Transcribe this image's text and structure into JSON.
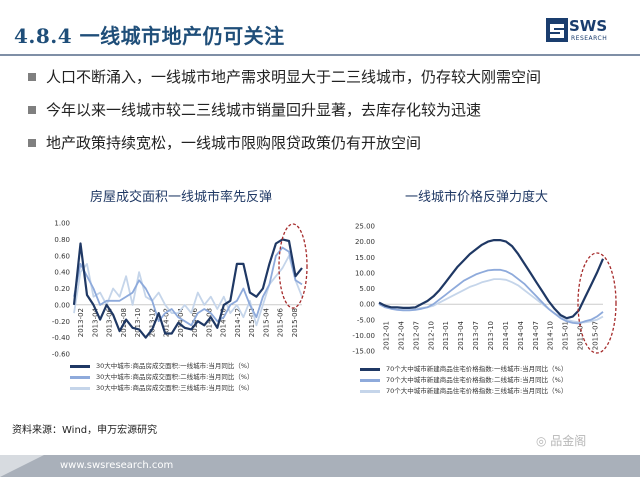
{
  "slide": {
    "title": "4.8.4 一线城市地产仍可关注",
    "logo_text": "SWS",
    "logo_sub": "RESEARCH",
    "bullets": [
      "人口不断涌入，一线城市地产需求明显大于二三线城市，仍存较大刚需空间",
      "今年以来一线城市较二三线城市销量回升显著，去库存化较为迅速",
      "地产政策持续宽松，一线城市限购限贷政策仍有开放空间"
    ],
    "source": "资料来源：Wind，申万宏源研究",
    "watermark": "品金阁",
    "footer_url": "www.swsresearch.com"
  },
  "colors": {
    "brand": "#1f4e79",
    "series_tier1": "#1f3864",
    "series_tier2": "#8eaadb",
    "series_tier3": "#c5d5ea",
    "highlight_ellipse": "#a52a2a"
  },
  "chart_data": [
    {
      "type": "line",
      "title": "房屋成交面积一线城市率先反弹",
      "ylim": [
        -0.6,
        1.0
      ],
      "yticks": [
        "1.00",
        "0.80",
        "0.60",
        "0.40",
        "0.20",
        "0.00",
        "-0.20",
        "-0.40",
        "-0.60"
      ],
      "x_labels": [
        "2013-02",
        "2013-04",
        "2013-06",
        "2013-08",
        "2013-10",
        "2013-12",
        "2014-02",
        "2014-04",
        "2014-06",
        "2014-08",
        "2014-10",
        "2014-12",
        "2015-02",
        "2015-04",
        "2015-06",
        "2015-08"
      ],
      "series": [
        {
          "name": "30大中城市:商品房成交面积:一线城市:当月同比（%）",
          "values": [
            0.0,
            0.75,
            0.12,
            0.0,
            -0.18,
            0.0,
            -0.12,
            -0.32,
            -0.18,
            -0.28,
            -0.3,
            -0.4,
            -0.3,
            -0.1,
            -0.35,
            -0.35,
            -0.22,
            -0.28,
            -0.3,
            -0.2,
            -0.25,
            -0.15,
            -0.28,
            0.0,
            0.05,
            0.5,
            0.5,
            0.15,
            0.1,
            0.2,
            0.5,
            0.75,
            0.8,
            0.78,
            0.35,
            0.45
          ]
        },
        {
          "name": "30大中城市:商品房成交面积:二线城市:当月同比（%）",
          "values": [
            0.1,
            0.5,
            0.35,
            0.2,
            0.0,
            0.05,
            0.05,
            0.05,
            0.1,
            0.15,
            0.3,
            0.2,
            0.05,
            -0.2,
            -0.1,
            -0.05,
            -0.15,
            -0.2,
            -0.25,
            -0.1,
            -0.05,
            -0.1,
            -0.2,
            -0.15,
            0.0,
            0.05,
            0.2,
            0.0,
            -0.15,
            0.1,
            0.25,
            0.6,
            0.7,
            0.65,
            0.3,
            0.25
          ]
        },
        {
          "name": "30大中城市:商品房成交面积:三线城市:当月同比（%）",
          "values": [
            -0.1,
            0.4,
            0.5,
            0.1,
            0.15,
            0.0,
            0.2,
            0.1,
            0.35,
            0.0,
            0.4,
            0.1,
            0.05,
            0.15,
            0.0,
            -0.1,
            -0.1,
            0.0,
            -0.1,
            0.15,
            0.0,
            0.1,
            -0.05,
            0.1,
            -0.1,
            0.0,
            -0.15,
            0.05,
            -0.25,
            0.0,
            0.25,
            0.35,
            0.45,
            0.6,
            0.3,
            0.1
          ]
        }
      ]
    },
    {
      "type": "line",
      "title": "一线城市价格反弹力度大",
      "ylim": [
        -15.0,
        25.0
      ],
      "yticks": [
        "25.00",
        "20.00",
        "15.00",
        "10.00",
        "5.00",
        "0.00",
        "-5.00",
        "-10.00",
        "-15.00"
      ],
      "x_labels": [
        "2012-01",
        "2012-04",
        "2012-07",
        "2012-10",
        "2013-01",
        "2013-04",
        "2013-07",
        "2013-10",
        "2014-01",
        "2014-04",
        "2014-07",
        "2014-10",
        "2015-01",
        "2015-04",
        "2015-07"
      ],
      "series": [
        {
          "name": "70个大中城市新建商品住宅价格指数:一线城市:当月同比（%）",
          "values": [
            0.5,
            -0.5,
            -1.0,
            -1.0,
            -1.2,
            -1.2,
            -1.0,
            0.0,
            1.0,
            2.5,
            4.5,
            7.0,
            9.5,
            12.0,
            14.0,
            16.0,
            17.5,
            19.0,
            20.0,
            20.5,
            20.5,
            20.0,
            18.5,
            16.0,
            13.0,
            10.0,
            7.0,
            4.0,
            1.0,
            -1.5,
            -3.5,
            -4.5,
            -4.0,
            -2.0,
            2.0,
            6.0,
            10.0,
            14.5
          ]
        },
        {
          "name": "70个大中城市新建商品住宅价格指数:二线城市:当月同比（%）",
          "values": [
            0.0,
            -1.0,
            -1.5,
            -1.8,
            -2.0,
            -2.0,
            -1.8,
            -1.5,
            -1.0,
            0.0,
            1.5,
            3.0,
            4.5,
            6.0,
            7.5,
            8.5,
            9.5,
            10.2,
            10.8,
            11.0,
            11.0,
            10.5,
            9.5,
            8.0,
            6.5,
            4.5,
            2.5,
            0.5,
            -1.5,
            -3.0,
            -4.5,
            -5.5,
            -6.0,
            -6.2,
            -5.5,
            -5.0,
            -4.0,
            -2.5
          ]
        },
        {
          "name": "70个大中城市新建商品住宅价格指数:三线城市:当月同比（%）",
          "values": [
            0.0,
            -0.5,
            -1.0,
            -1.2,
            -1.5,
            -1.5,
            -1.5,
            -1.2,
            -1.0,
            -0.5,
            0.5,
            1.5,
            2.5,
            3.5,
            4.5,
            5.5,
            6.2,
            7.0,
            7.5,
            8.0,
            8.0,
            7.8,
            7.0,
            6.0,
            4.5,
            3.0,
            1.5,
            0.0,
            -1.5,
            -3.0,
            -4.0,
            -5.0,
            -5.5,
            -5.8,
            -5.8,
            -5.5,
            -5.0,
            -4.0
          ]
        }
      ]
    }
  ]
}
